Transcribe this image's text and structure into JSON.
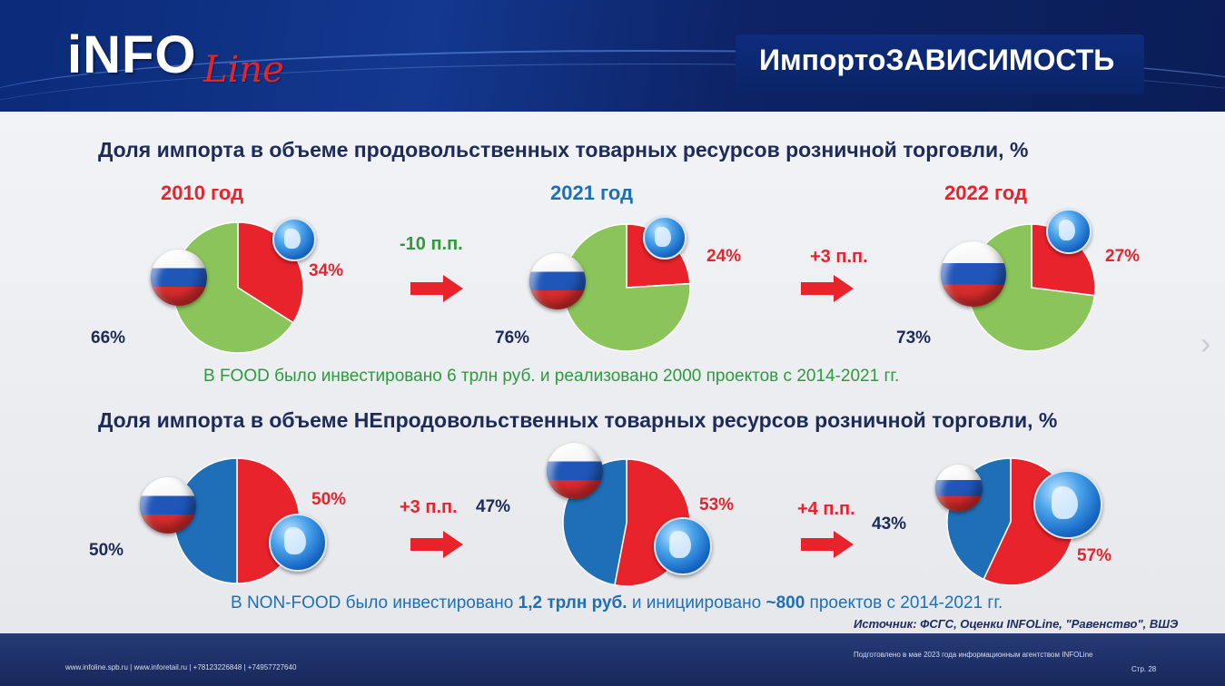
{
  "header": {
    "logo_main": "iNFO",
    "logo_script": "Line",
    "title": "ИмпортоЗАВИСИМОСТЬ"
  },
  "food": {
    "title": "Доля импорта в объеме продовольственных товарных ресурсов розничной торговли, %",
    "years": [
      "2010 год",
      "2021 год",
      "2022 год"
    ],
    "import_labels": [
      "34%",
      "24%",
      "27%"
    ],
    "domestic_labels": [
      "66%",
      "76%",
      "73%"
    ],
    "deltas": [
      "-10 п.п.",
      "+3 п.п."
    ],
    "note": "В FOOD было инвестировано 6 трлн руб. и реализовано 2000 проектов с 2014-2021 гг."
  },
  "nonfood": {
    "title": "Доля импорта в объеме НЕпродовольственных товарных ресурсов розничной торговли, %",
    "import_labels": [
      "50%",
      "53%",
      "57%"
    ],
    "domestic_labels": [
      "50%",
      "47%",
      "43%"
    ],
    "deltas": [
      "+3 п.п.",
      "+4 п.п."
    ],
    "note_part1": "В NON-FOOD было инвестировано ",
    "note_bold1": "1,2 трлн руб.",
    "note_part2": " и инициировано ",
    "note_bold2": "~800",
    "note_part3": " проектов с 2014-2021 гг."
  },
  "source": "Источник: ФСГС, Оценки INFOLine, \"Равенство\", ВШЭ",
  "footer": {
    "contacts": "www.infoline.spb.ru | www.inforetail.ru | +78123226848 | +74957727640",
    "prepared": "Подготовлено в мае 2023 года информационным агентством INFOLine",
    "page": "Стр. 28"
  },
  "colors": {
    "import": "#e8232b",
    "food_domestic": "#8ac45a",
    "nonfood_domestic": "#1e6fb8"
  },
  "chart_data": [
    {
      "type": "pie",
      "categories": [
        "импорт",
        "отечественное"
      ],
      "values": [
        34,
        66
      ],
      "title": "2010 год"
    },
    {
      "type": "pie",
      "categories": [
        "импорт",
        "отечественное"
      ],
      "values": [
        24,
        76
      ],
      "title": "2021 год"
    },
    {
      "type": "pie",
      "categories": [
        "импорт",
        "отечественное"
      ],
      "values": [
        27,
        73
      ],
      "title": "2022 год"
    },
    {
      "type": "pie",
      "categories": [
        "импорт",
        "отечественное"
      ],
      "values": [
        50,
        50
      ]
    },
    {
      "type": "pie",
      "categories": [
        "импорт",
        "отечественное"
      ],
      "values": [
        53,
        47
      ]
    },
    {
      "type": "pie",
      "categories": [
        "импорт",
        "отечественное"
      ],
      "values": [
        57,
        43
      ]
    }
  ]
}
